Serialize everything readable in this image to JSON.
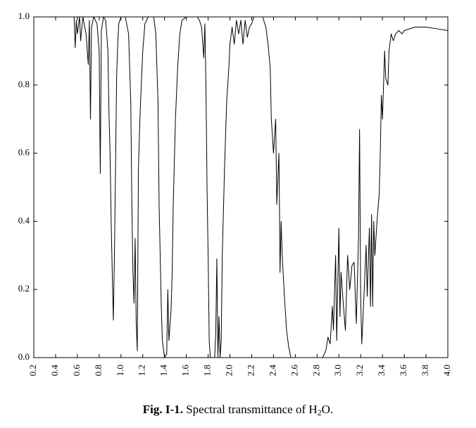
{
  "chart_data": {
    "type": "line",
    "caption_label": "Fig. I-1.",
    "caption_text": "Spectral transmittance of H",
    "caption_sub": "2",
    "caption_end": "O.",
    "color": "#000000",
    "x": [
      0.33,
      0.57,
      0.58,
      0.59,
      0.6,
      0.62,
      0.63,
      0.65,
      0.68,
      0.7,
      0.71,
      0.72,
      0.73,
      0.75,
      0.78,
      0.8,
      0.81,
      0.82,
      0.84,
      0.86,
      0.88,
      0.89,
      0.9,
      0.91,
      0.92,
      0.93,
      0.94,
      0.95,
      0.96,
      0.97,
      0.98,
      1.0,
      1.04,
      1.07,
      1.09,
      1.1,
      1.11,
      1.12,
      1.13,
      1.14,
      1.15,
      1.16,
      1.17,
      1.18,
      1.2,
      1.22,
      1.25,
      1.3,
      1.32,
      1.34,
      1.35,
      1.37,
      1.38,
      1.4,
      1.42,
      1.43,
      1.44,
      1.46,
      1.47,
      1.48,
      1.5,
      1.52,
      1.54,
      1.56,
      1.6,
      1.7,
      1.72,
      1.74,
      1.76,
      1.77,
      1.78,
      1.79,
      1.8,
      1.81,
      1.82,
      1.86,
      1.87,
      1.88,
      1.89,
      1.9,
      1.91,
      1.92,
      1.93,
      1.95,
      1.97,
      1.99,
      2.0,
      2.02,
      2.04,
      2.06,
      2.08,
      2.1,
      2.12,
      2.14,
      2.16,
      2.18,
      2.2,
      2.22,
      2.3,
      2.33,
      2.35,
      2.37,
      2.38,
      2.4,
      2.42,
      2.43,
      2.45,
      2.46,
      2.47,
      2.48,
      2.5,
      2.52,
      2.54,
      2.56,
      2.85,
      2.88,
      2.9,
      2.92,
      2.94,
      2.95,
      2.97,
      2.98,
      3.0,
      3.01,
      3.02,
      3.04,
      3.06,
      3.08,
      3.1,
      3.12,
      3.14,
      3.16,
      3.18,
      3.19,
      3.2,
      3.21,
      3.23,
      3.25,
      3.26,
      3.28,
      3.29,
      3.3,
      3.31,
      3.32,
      3.33,
      3.35,
      3.37,
      3.38,
      3.39,
      3.4,
      3.42,
      3.43,
      3.45,
      3.46,
      3.48,
      3.5,
      3.52,
      3.55,
      3.58,
      3.6,
      3.7,
      3.8,
      3.9,
      4.0
    ],
    "values": [
      1.0,
      1.0,
      0.91,
      0.99,
      0.95,
      1.0,
      0.93,
      1.0,
      0.95,
      0.86,
      0.99,
      0.7,
      0.97,
      1.0,
      0.98,
      0.9,
      0.54,
      0.96,
      1.0,
      0.99,
      0.9,
      0.72,
      0.6,
      0.4,
      0.25,
      0.11,
      0.3,
      0.55,
      0.82,
      0.92,
      0.98,
      1.0,
      1.0,
      0.95,
      0.75,
      0.45,
      0.25,
      0.16,
      0.35,
      0.1,
      0.02,
      0.55,
      0.66,
      0.75,
      0.9,
      0.98,
      1.0,
      1.0,
      0.95,
      0.75,
      0.45,
      0.15,
      0.05,
      0.0,
      0.01,
      0.2,
      0.05,
      0.14,
      0.25,
      0.45,
      0.7,
      0.85,
      0.95,
      0.99,
      1.0,
      1.0,
      0.99,
      0.97,
      0.88,
      0.98,
      0.8,
      0.5,
      0.3,
      0.05,
      0.0,
      0.0,
      0.07,
      0.29,
      0.0,
      0.12,
      0.0,
      0.05,
      0.3,
      0.55,
      0.75,
      0.85,
      0.92,
      0.97,
      0.92,
      0.99,
      0.95,
      0.99,
      0.92,
      0.99,
      0.94,
      0.97,
      0.98,
      1.0,
      1.0,
      0.97,
      0.92,
      0.85,
      0.7,
      0.6,
      0.7,
      0.45,
      0.6,
      0.25,
      0.4,
      0.3,
      0.18,
      0.08,
      0.03,
      0.0,
      0.0,
      0.02,
      0.06,
      0.04,
      0.15,
      0.08,
      0.3,
      0.05,
      0.38,
      0.12,
      0.25,
      0.16,
      0.08,
      0.3,
      0.2,
      0.27,
      0.28,
      0.1,
      0.35,
      0.67,
      0.18,
      0.04,
      0.18,
      0.33,
      0.18,
      0.38,
      0.15,
      0.42,
      0.15,
      0.4,
      0.3,
      0.4,
      0.48,
      0.6,
      0.77,
      0.7,
      0.9,
      0.82,
      0.8,
      0.9,
      0.95,
      0.93,
      0.95,
      0.96,
      0.95,
      0.96,
      0.97,
      0.97,
      0.965,
      0.96
    ],
    "xlim": [
      0.2,
      4.0
    ],
    "ylim": [
      0,
      1
    ],
    "xticks": [
      0.2,
      0.4,
      0.6,
      0.8,
      {
        "value": 1,
        "label": "1.0"
      },
      1.2,
      1.4,
      1.6,
      1.8,
      {
        "value": 2,
        "label": "2.0"
      },
      2.2,
      2.4,
      2.6,
      2.8,
      {
        "value": 3,
        "label": "3.0"
      },
      3.2,
      3.4,
      3.6,
      3.8,
      {
        "value": 4,
        "label": "4.0"
      }
    ],
    "yticks": [
      {
        "value": 0,
        "label": "0.0"
      },
      0.2,
      0.4,
      0.6,
      0.8,
      {
        "value": 1,
        "label": "1.0"
      }
    ]
  }
}
